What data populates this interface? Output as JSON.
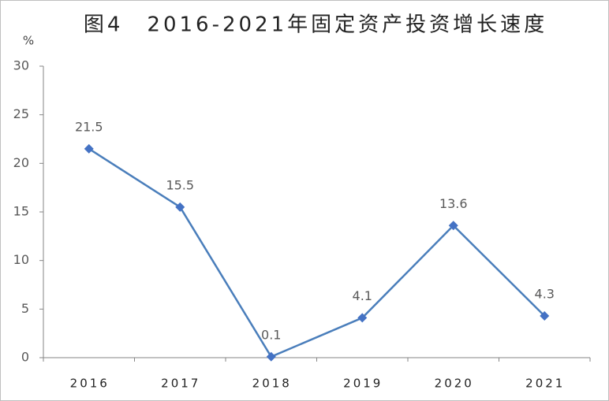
{
  "chart_data": {
    "type": "line",
    "title": "图4　2016-2021年固定资产投资增长速度",
    "y_label": "%",
    "categories": [
      "2016",
      "2017",
      "2018",
      "2019",
      "2020",
      "2021"
    ],
    "values": [
      21.5,
      15.5,
      0.1,
      4.1,
      13.6,
      4.3
    ],
    "color": "#4a7ebb",
    "marker_color": "#4472c4",
    "ylim": [
      0,
      30
    ],
    "yticks": [
      0,
      5,
      10,
      15,
      20,
      25,
      30
    ],
    "grid": false
  }
}
